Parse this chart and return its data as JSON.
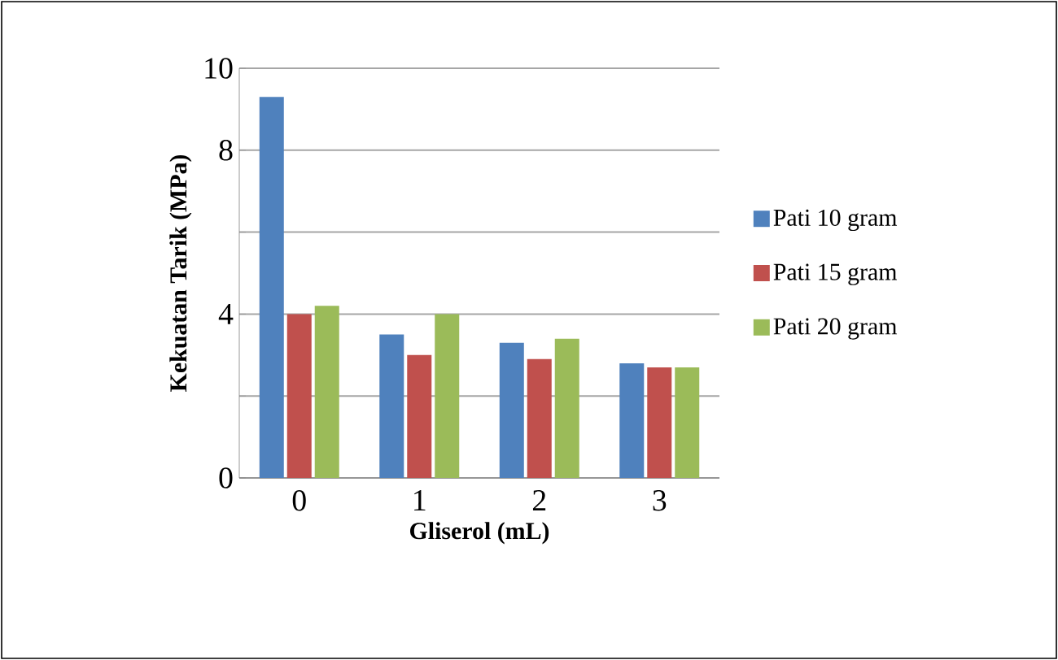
{
  "chart_data": {
    "type": "bar",
    "xlabel": "Gliserol (mL)",
    "ylabel": "Kekuatan Tarik (MPa)",
    "categories": [
      "0",
      "1",
      "2",
      "3"
    ],
    "series": [
      {
        "name": "Pati 10 gram",
        "color": "#4f81bd",
        "values": [
          9.3,
          3.5,
          3.3,
          2.8
        ]
      },
      {
        "name": "Pati 15 gram",
        "color": "#c0504d",
        "values": [
          4.0,
          3.0,
          2.9,
          2.7
        ]
      },
      {
        "name": "Pati 20 gram",
        "color": "#9bbb59",
        "values": [
          4.2,
          4.0,
          3.4,
          2.7
        ]
      }
    ],
    "ylim": [
      0,
      10
    ],
    "yticks": [
      0,
      {
        "value": 2,
        "label": null
      },
      4,
      {
        "value": 6,
        "label": null
      },
      8,
      10
    ],
    "grid": "y",
    "legend": "right"
  }
}
